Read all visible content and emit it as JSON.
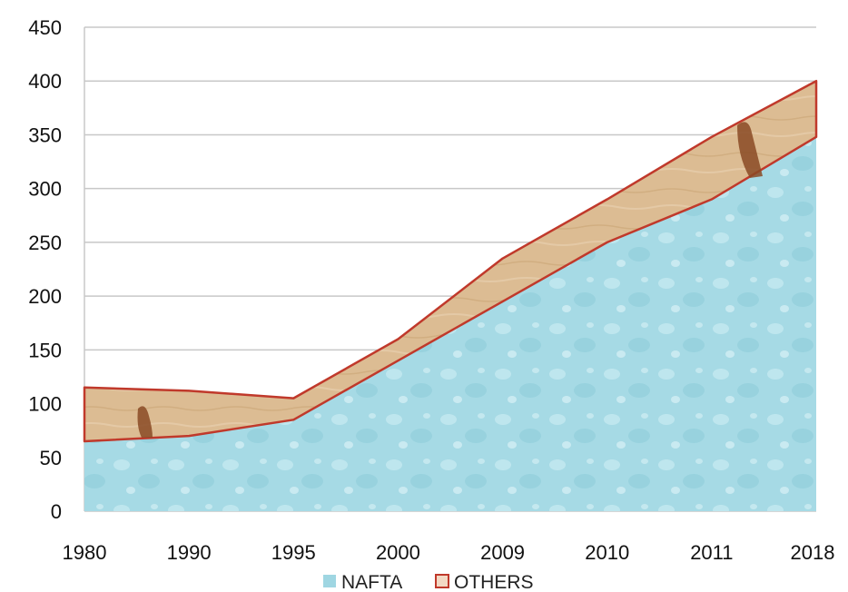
{
  "chart_data": {
    "type": "area",
    "stacked": true,
    "categories": [
      "1980",
      "1990",
      "1995",
      "2000",
      "2009",
      "2010",
      "2011",
      "2018"
    ],
    "series": [
      {
        "name": "NAFTA",
        "values": [
          65,
          70,
          85,
          140,
          195,
          250,
          290,
          348
        ],
        "color": "#9fd6e2"
      },
      {
        "name": "OTHERS",
        "values": [
          50,
          42,
          20,
          20,
          40,
          40,
          58,
          52
        ],
        "color": "#d9b88c"
      }
    ],
    "ylim": [
      0,
      450
    ],
    "yticks": [
      0,
      50,
      100,
      150,
      200,
      250,
      300,
      350,
      400,
      450
    ],
    "grid": true,
    "legend_position": "bottom",
    "outline_color": "#c0392b"
  }
}
